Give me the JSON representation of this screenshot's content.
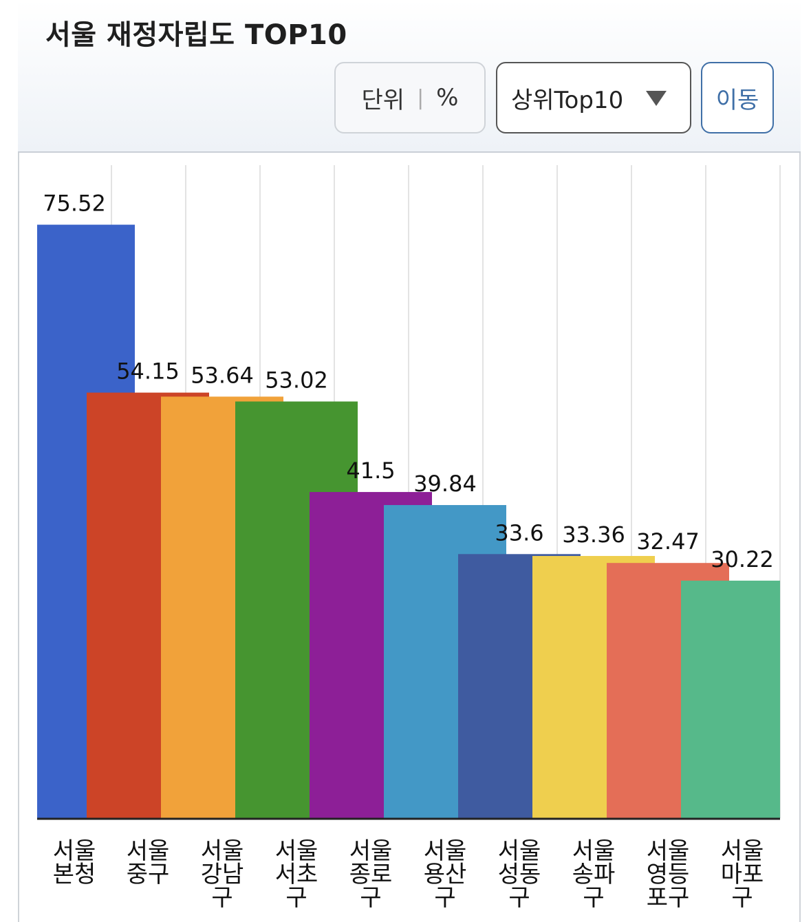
{
  "header": {
    "title": "서울 재정자립도 TOP10",
    "unit_label": "단위",
    "unit_value": "%",
    "select_value": "상위Top10",
    "move_label": "이동"
  },
  "colors": {
    "accent": "#3f6fa7",
    "grid": "#e3e3e3",
    "axis": "#222222"
  },
  "chart_data": {
    "type": "bar",
    "title": "서울 재정자립도 TOP10",
    "unit": "%",
    "ylim": [
      0,
      80
    ],
    "grid": "vertical",
    "categories": [
      [
        "서울",
        "본청"
      ],
      [
        "서울",
        "중구"
      ],
      [
        "서울",
        "강남",
        "구"
      ],
      [
        "서울",
        "서초",
        "구"
      ],
      [
        "서울",
        "종로",
        "구"
      ],
      [
        "서울",
        "용산",
        "구"
      ],
      [
        "서울",
        "성동",
        "구"
      ],
      [
        "서울",
        "송파",
        "구"
      ],
      [
        "서울",
        "영등",
        "포구"
      ],
      [
        "서울",
        "마포",
        "구"
      ]
    ],
    "values": [
      75.52,
      54.15,
      53.64,
      53.02,
      41.5,
      39.84,
      33.6,
      33.36,
      32.47,
      30.22
    ],
    "value_labels": [
      "75.52",
      "54.15",
      "53.64",
      "53.02",
      "41.5",
      "39.84",
      "33.6",
      "33.36",
      "32.47",
      "30.22"
    ],
    "bar_colors": [
      "#3b63c9",
      "#cc4427",
      "#f1a23a",
      "#469530",
      "#8d1f97",
      "#4398c6",
      "#3f5ba0",
      "#efcf4e",
      "#e46e57",
      "#56b98a"
    ]
  }
}
